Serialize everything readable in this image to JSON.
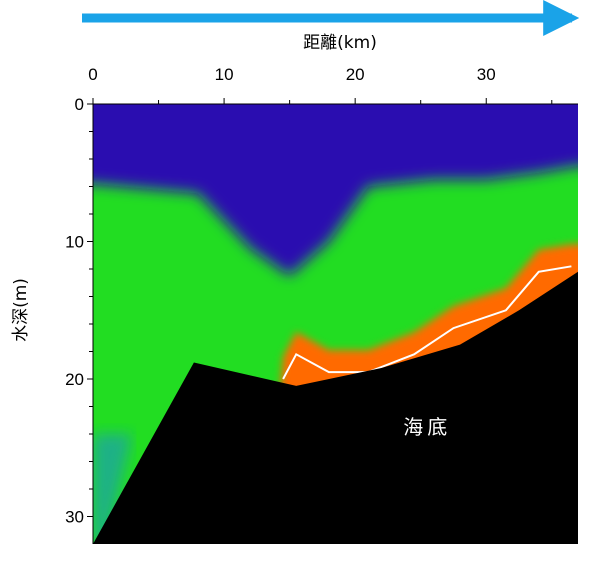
{
  "chart_data": {
    "type": "heatmap",
    "title": "",
    "xlabel": "距離(km)",
    "ylabel": "水深(m)",
    "xlim": [
      0,
      37
    ],
    "ylim": [
      0,
      32
    ],
    "x_axis_position": "top",
    "y_axis_inverted": true,
    "x_ticks": [
      0,
      10,
      20,
      30
    ],
    "x_tick_labels": [
      "0",
      "10",
      "20",
      "30"
    ],
    "y_ticks": [
      0,
      10,
      20,
      30
    ],
    "y_tick_labels": [
      "0",
      "10",
      "20",
      "30"
    ],
    "direction_arrow": "left-to-right above the distance axis",
    "colors": {
      "arrow": "#1aa3e8",
      "seabed": "#000000",
      "contour": "#ffffff",
      "shallow": "#2a10b0",
      "mid": "#22dd22",
      "deep": "#ff6a00"
    },
    "layers": [
      {
        "name": "upper layer",
        "color": "#2a10b0",
        "bottom_depth": [
          {
            "x": 0,
            "depth": 5.8
          },
          {
            "x": 8,
            "depth": 6.5
          },
          {
            "x": 12,
            "depth": 10.5
          },
          {
            "x": 15,
            "depth": 12.5
          },
          {
            "x": 18,
            "depth": 10
          },
          {
            "x": 21,
            "depth": 6
          },
          {
            "x": 26,
            "depth": 5.5
          },
          {
            "x": 30,
            "depth": 5.5
          },
          {
            "x": 34,
            "depth": 5
          },
          {
            "x": 37,
            "depth": 4.5
          }
        ]
      },
      {
        "name": "middle layer",
        "color": "#22dd22"
      },
      {
        "name": "bottom layer",
        "color": "#ff6a00"
      }
    ],
    "contour_line": [
      {
        "x": 14.5,
        "depth": 20
      },
      {
        "x": 15.5,
        "depth": 18.2
      },
      {
        "x": 18,
        "depth": 19.5
      },
      {
        "x": 21,
        "depth": 19.5
      },
      {
        "x": 24.5,
        "depth": 18.2
      },
      {
        "x": 27.5,
        "depth": 16.3
      },
      {
        "x": 31.5,
        "depth": 15
      },
      {
        "x": 34,
        "depth": 12.2
      },
      {
        "x": 36.5,
        "depth": 11.8
      }
    ],
    "seabed_profile": [
      {
        "x": 0,
        "depth": 32
      },
      {
        "x": 7.7,
        "depth": 18.8
      },
      {
        "x": 15.5,
        "depth": 20.5
      },
      {
        "x": 22,
        "depth": 19.2
      },
      {
        "x": 28,
        "depth": 17.5
      },
      {
        "x": 32.5,
        "depth": 15
      },
      {
        "x": 37,
        "depth": 12.2
      }
    ],
    "annotations": [
      {
        "text": "海底",
        "x": 25.5,
        "depth": 23.5
      }
    ]
  }
}
